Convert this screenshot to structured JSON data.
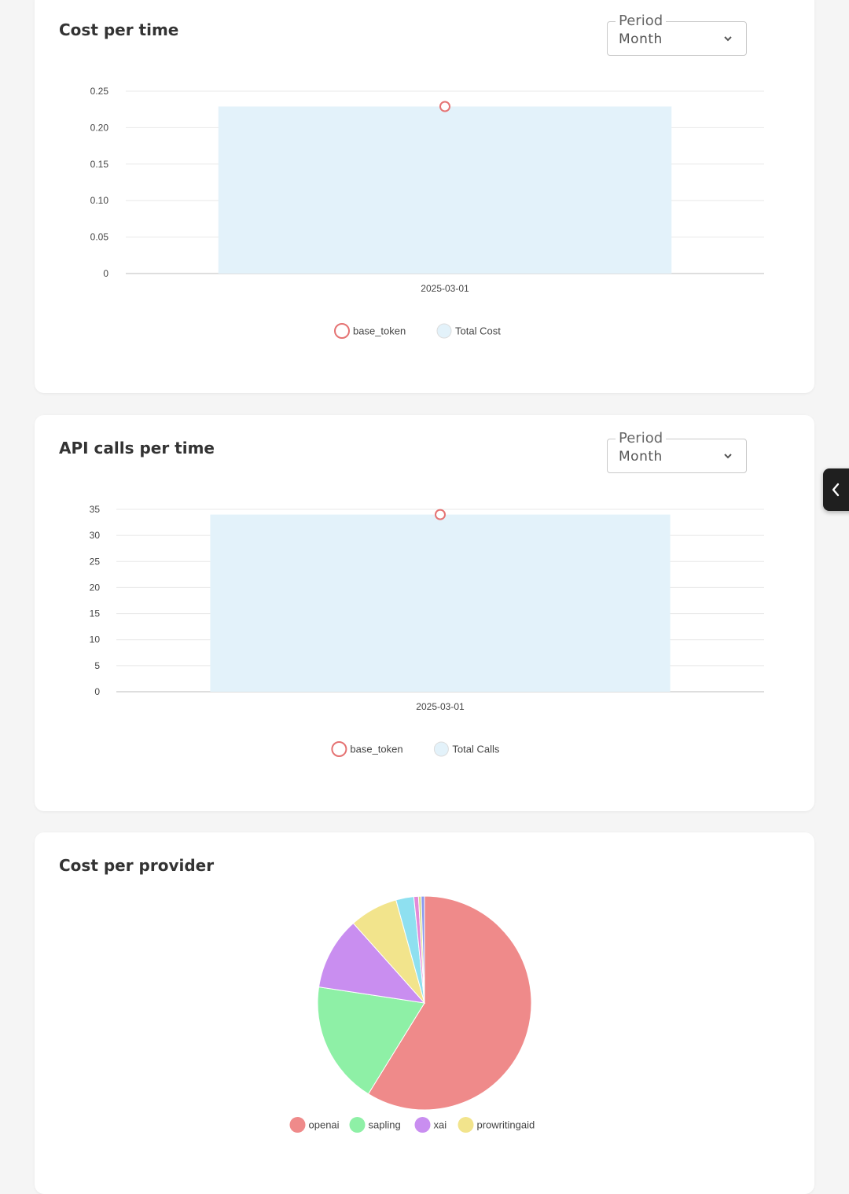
{
  "cards": {
    "cost_time": {
      "title": "Cost per time",
      "period_label": "Period",
      "period_value": "Month"
    },
    "calls_time": {
      "title": "API calls per time",
      "period_label": "Period",
      "period_value": "Month"
    },
    "provider": {
      "title": "Cost per provider"
    }
  },
  "chart_data": [
    {
      "type": "bar",
      "title": "Cost per time",
      "categories": [
        "2025-03-01"
      ],
      "yticks": [
        "0",
        "0.05",
        "0.10",
        "0.15",
        "0.20",
        "0.25"
      ],
      "ylim": [
        0,
        0.25
      ],
      "grid": true,
      "legend_position": "bottom",
      "series": [
        {
          "name": "base_token",
          "kind": "point",
          "values": [
            0.229
          ],
          "color": "#e57373"
        },
        {
          "name": "Total Cost",
          "kind": "bar",
          "values": [
            0.229
          ],
          "color": "#e3f2fa"
        }
      ]
    },
    {
      "type": "bar",
      "title": "API calls per time",
      "categories": [
        "2025-03-01"
      ],
      "yticks": [
        "0",
        "5",
        "10",
        "15",
        "20",
        "25",
        "30",
        "35"
      ],
      "ylim": [
        0,
        35
      ],
      "grid": true,
      "legend_position": "bottom",
      "series": [
        {
          "name": "base_token",
          "kind": "point",
          "values": [
            34
          ],
          "color": "#e57373"
        },
        {
          "name": "Total Calls",
          "kind": "bar",
          "values": [
            34
          ],
          "color": "#e3f2fa"
        }
      ]
    },
    {
      "type": "pie",
      "title": "Cost per provider",
      "legend_position": "bottom",
      "slices": [
        {
          "label": "openai",
          "value": 58.8,
          "color": "#ef8a8a"
        },
        {
          "label": "sapling",
          "value": 18.6,
          "color": "#8ef0a6"
        },
        {
          "label": "xai",
          "value": 11.0,
          "color": "#c98ef0"
        },
        {
          "label": "prowritingaid",
          "value": 7.3,
          "color": "#f2e48c"
        },
        {
          "label": "",
          "value": 2.7,
          "color": "#8ee0f0",
          "legend": false
        },
        {
          "label": "",
          "value": 0.7,
          "color": "#e38ad8",
          "legend": false
        },
        {
          "label": "",
          "value": 0.4,
          "color": "#d8dc8a",
          "legend": false
        },
        {
          "label": "",
          "value": 0.5,
          "color": "#8a9af0",
          "legend": false
        }
      ]
    }
  ]
}
